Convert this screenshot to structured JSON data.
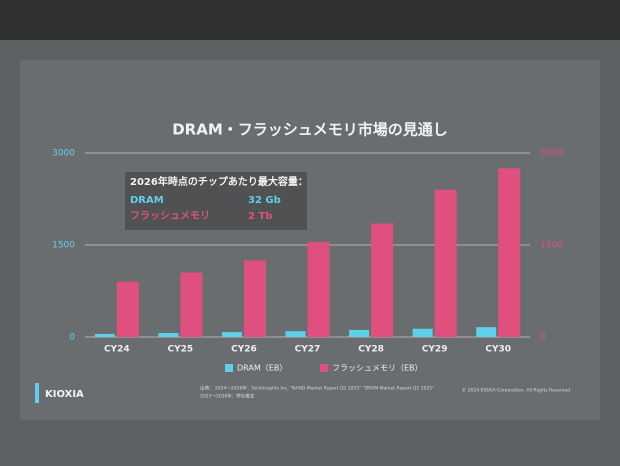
{
  "chart_data": {
    "type": "bar",
    "title": "DRAM・フラッシュメモリ市場の見通し",
    "categories": [
      "CY24",
      "CY25",
      "CY26",
      "CY27",
      "CY28",
      "CY29",
      "CY30"
    ],
    "series": [
      {
        "name": "DRAM（EB）",
        "color": "#5fd0ea",
        "values": [
          50,
          65,
          80,
          95,
          115,
          135,
          160
        ]
      },
      {
        "name": "フラッシュメモリ（EB）",
        "color": "#e0507f",
        "axis": "y2",
        "values": [
          900,
          1050,
          1250,
          1550,
          1850,
          2400,
          2750
        ]
      }
    ],
    "ylim": [
      0,
      3000
    ],
    "yticks": [
      0,
      1500,
      3000
    ],
    "y2lim": [
      0,
      3000
    ],
    "y2ticks": [
      0,
      1500,
      3000
    ],
    "grid": true,
    "annotation": {
      "heading": "2026年時点のチップあたり最大容量：",
      "rows": [
        [
          "DRAM",
          "32 Gb"
        ],
        [
          "フラッシュメモリ",
          "2 Tb"
        ]
      ]
    }
  },
  "footer": {
    "brand": "KIOXIA",
    "source": [
      "出典： 2024～2026年：TechInsights Inc. \"NAND Market Report Q2 2025\" \"DRAM Market Report Q2 2025\"",
      "2027～2030年：弊社推定"
    ],
    "copyright": "© 2024 KIOXIA Corporation. All Rights Reserved"
  }
}
